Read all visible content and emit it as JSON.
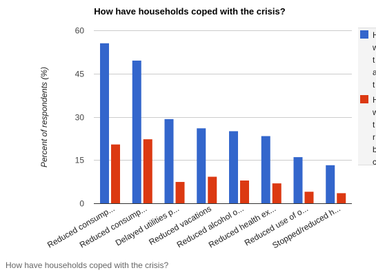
{
  "caption": "How have households coped with the crisis?",
  "chart_data": {
    "type": "bar",
    "title": "How have households coped with the crisis?",
    "xlabel": "",
    "ylabel": "Percent of respondents (%)",
    "ylim": [
      0,
      60
    ],
    "yticks": [
      "0",
      "15",
      "30",
      "45",
      "60"
    ],
    "grid": true,
    "legend_position": "right",
    "categories": [
      "Reduced consump...",
      "Reduced consump...",
      "Delayed utilities p...",
      "Reduced vacations",
      "Reduced alcohol o...",
      "Reduced health ex...",
      "Reduced use of o...",
      "Stopped/reduced h..."
    ],
    "series": [
      {
        "legend_lines": [
          "H",
          "w",
          "t",
          "a",
          "t"
        ],
        "color": "#3366cc",
        "values": [
          55.5,
          49.5,
          29.2,
          26.0,
          25.0,
          23.3,
          16.0,
          13.2
        ]
      },
      {
        "legend_lines": [
          "H",
          "w",
          "t",
          "r",
          "b",
          "c"
        ],
        "color": "#dc3912",
        "values": [
          20.4,
          22.2,
          7.4,
          9.2,
          7.9,
          6.9,
          4.0,
          3.5
        ]
      }
    ]
  }
}
